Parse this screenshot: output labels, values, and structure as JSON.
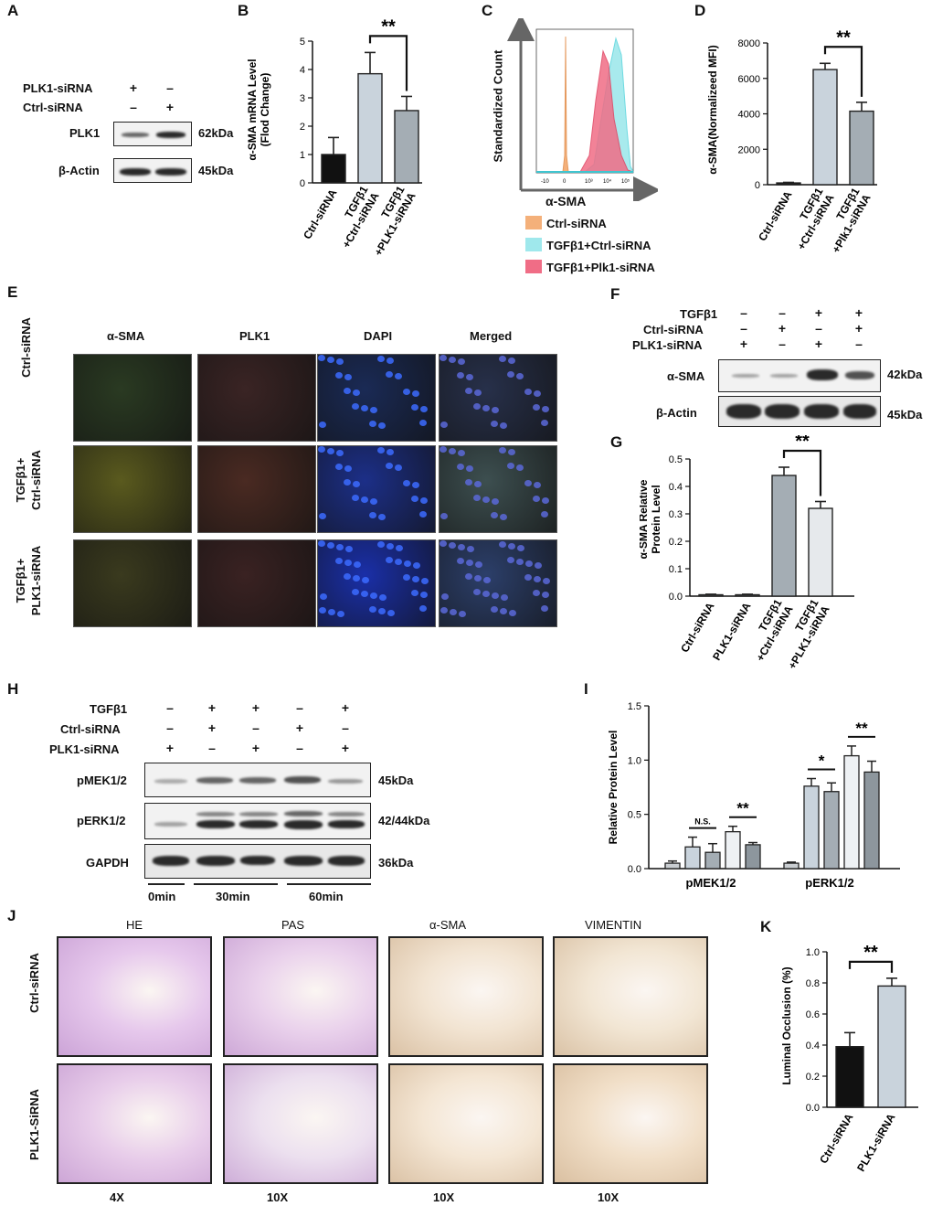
{
  "panels": {
    "A": "A",
    "B": "B",
    "C": "C",
    "D": "D",
    "E": "E",
    "F": "F",
    "G": "G",
    "H": "H",
    "I": "I",
    "J": "J",
    "K": "K"
  },
  "panelA": {
    "rows": [
      "PLK1-siRNA",
      "Ctrl-siRNA"
    ],
    "signs": [
      [
        "+",
        "–"
      ],
      [
        "–",
        "+"
      ]
    ],
    "blots": [
      {
        "name": "PLK1",
        "kda": "62kDa"
      },
      {
        "name": "β-Actin",
        "kda": "45kDa"
      }
    ]
  },
  "panelC": {
    "ylabel": "Standardized Count",
    "xlabel": "α-SMA",
    "legend": [
      {
        "label": "Ctrl-siRNA",
        "color": "#f4b07a"
      },
      {
        "label": "TGFβ1+Ctrl-siRNA",
        "color": "#9fe8ec"
      },
      {
        "label": "TGFβ1+Plk1-siRNA",
        "color": "#f06d86"
      }
    ],
    "ticks": [
      "-10",
      "0",
      "10³",
      "10⁴",
      "10⁵"
    ]
  },
  "panelE": {
    "columns": [
      "α-SMA",
      "PLK1",
      "DAPI",
      "Merged"
    ],
    "rows": [
      "Ctrl-siRNA",
      "TGFβ1+\nCtrl-siRNA",
      "TGFβ1+\nPLK1-siRNA"
    ]
  },
  "panelF": {
    "rows": [
      "TGFβ1",
      "Ctrl-siRNA",
      "PLK1-siRNA"
    ],
    "signs": [
      [
        "–",
        "–",
        "+",
        "+"
      ],
      [
        "–",
        "+",
        "–",
        "+"
      ],
      [
        "+",
        "–",
        "+",
        "–"
      ]
    ],
    "blots": [
      {
        "name": "α-SMA",
        "kda": "42kDa"
      },
      {
        "name": "β-Actin",
        "kda": "45kDa"
      }
    ]
  },
  "panelH": {
    "rows": [
      "TGFβ1",
      "Ctrl-siRNA",
      "PLK1-siRNA"
    ],
    "signs": [
      [
        "–",
        "+",
        "+",
        "–",
        "+"
      ],
      [
        "–",
        "+",
        "–",
        "+",
        "–"
      ],
      [
        "+",
        "–",
        "+",
        "–",
        "+"
      ]
    ],
    "blots": [
      {
        "name": "pMEK1/2",
        "kda": "45kDa"
      },
      {
        "name": "pERK1/2",
        "kda": "42/44kDa"
      },
      {
        "name": "GAPDH",
        "kda": "36kDa"
      }
    ],
    "times": [
      "0min",
      "30min",
      "60min"
    ]
  },
  "panelJ": {
    "columns": [
      "HE",
      "PAS",
      "α-SMA",
      "VIMENTIN"
    ],
    "rows": [
      "Ctrl-siRNA",
      "PLK1-SiRNA"
    ],
    "mags": [
      "4X",
      "10X",
      "10X",
      "10X"
    ]
  },
  "chart_data": [
    {
      "id": "B",
      "type": "bar",
      "categories": [
        "Ctrl-siRNA",
        "TGFβ1\n+Ctrl-siRNA",
        "TGFβ1\n+PLK1-siRNA"
      ],
      "values": [
        1.0,
        3.85,
        2.55
      ],
      "errors": [
        0.6,
        0.75,
        0.5
      ],
      "colors": [
        "#111111",
        "#c9d3dc",
        "#a4adb4"
      ],
      "ylabel": "α-SMA mRNA Level\n(Flod Change)",
      "ylim": [
        0,
        5
      ],
      "yticks": [
        0,
        1,
        2,
        3,
        4,
        5
      ],
      "sig": [
        {
          "from": 1,
          "to": 2,
          "label": "**"
        }
      ]
    },
    {
      "id": "D",
      "type": "bar",
      "categories": [
        "Ctrl-siRNA",
        "TGFβ1\n+Ctrl-siRNA",
        "TGFβ1\n+Plk1-siRNA"
      ],
      "values": [
        100,
        6500,
        4150
      ],
      "errors": [
        30,
        350,
        500
      ],
      "colors": [
        "#111111",
        "#c9d3dc",
        "#a4adb4"
      ],
      "ylabel": "α-SMA(Normalizeed MFI)",
      "ylim": [
        0,
        8000
      ],
      "yticks": [
        0,
        2000,
        4000,
        6000,
        8000
      ],
      "sig": [
        {
          "from": 1,
          "to": 2,
          "label": "**"
        }
      ]
    },
    {
      "id": "G",
      "type": "bar",
      "categories": [
        "Ctrl-siRNA",
        "PLK1-siRNA",
        "TGFβ1\n+Ctrl-siRNA",
        "TGFβ1\n+PLK1-siRNA"
      ],
      "values": [
        0.005,
        0.005,
        0.44,
        0.32
      ],
      "errors": [
        0.002,
        0.002,
        0.03,
        0.025
      ],
      "colors": [
        "#a4adb4",
        "#a4adb4",
        "#a4adb4",
        "#e6e9ec"
      ],
      "ylabel": "α-SMA Relative\nProtein Level",
      "ylim": [
        0,
        0.5
      ],
      "yticks": [
        0.0,
        0.1,
        0.2,
        0.3,
        0.4,
        0.5
      ],
      "sig": [
        {
          "from": 2,
          "to": 3,
          "label": "**"
        }
      ]
    },
    {
      "id": "I",
      "type": "bar",
      "groups": [
        "pMEK1/2",
        "pERK1/2"
      ],
      "series": [
        {
          "values": [
            0.05,
            0.05
          ],
          "errors": [
            0.02,
            0.01
          ],
          "color": "#c9cdd1"
        },
        {
          "values": [
            0.2,
            0.76
          ],
          "errors": [
            0.09,
            0.07
          ],
          "color": "#c9d3dc"
        },
        {
          "values": [
            0.15,
            0.71
          ],
          "errors": [
            0.08,
            0.08
          ],
          "color": "#a4adb4"
        },
        {
          "values": [
            0.34,
            1.04
          ],
          "errors": [
            0.05,
            0.09
          ],
          "color": "#eef1f4"
        },
        {
          "values": [
            0.22,
            0.89
          ],
          "errors": [
            0.02,
            0.1
          ],
          "color": "#8d969d"
        }
      ],
      "ylabel": "Relative  Protein Level",
      "ylim": [
        0,
        1.5
      ],
      "yticks": [
        0.0,
        0.5,
        1.0,
        1.5
      ],
      "sig": [
        {
          "group": 0,
          "from": 1,
          "to": 2,
          "label": "N.S."
        },
        {
          "group": 0,
          "from": 3,
          "to": 4,
          "label": "**"
        },
        {
          "group": 1,
          "from": 1,
          "to": 2,
          "label": "*"
        },
        {
          "group": 1,
          "from": 3,
          "to": 4,
          "label": "**"
        }
      ]
    },
    {
      "id": "K",
      "type": "bar",
      "categories": [
        "Ctrl-siRNA",
        "PLK1-siRNA"
      ],
      "values": [
        0.39,
        0.78
      ],
      "errors": [
        0.09,
        0.05
      ],
      "colors": [
        "#111111",
        "#c9d3dc"
      ],
      "ylabel": "Luminal Occlusion (%)",
      "ylim": [
        0,
        1.0
      ],
      "yticks": [
        0.0,
        0.2,
        0.4,
        0.6,
        0.8,
        1.0
      ],
      "sig": [
        {
          "from": 0,
          "to": 1,
          "label": "**"
        }
      ]
    }
  ]
}
